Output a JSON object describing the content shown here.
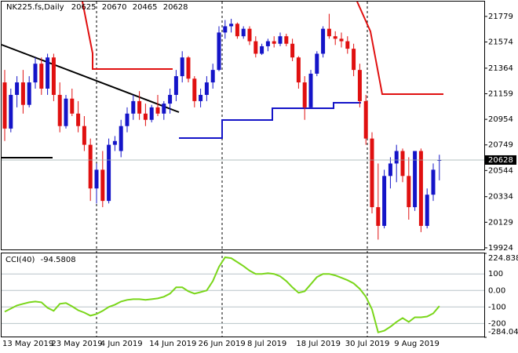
{
  "chart_data": [
    {
      "type": "candlestick",
      "title": "NK225.fs,Daily",
      "categories": [
        "13 May 2019",
        null,
        null,
        null,
        null,
        null,
        null,
        null,
        "23 May 2019",
        null,
        null,
        null,
        null,
        null,
        null,
        null,
        "4 Jun 2019",
        null,
        null,
        null,
        null,
        null,
        null,
        null,
        "14 Jun 2019",
        null,
        null,
        null,
        null,
        null,
        null,
        null,
        "26 Jun 2019",
        null,
        null,
        null,
        null,
        null,
        null,
        null,
        "8 Jul 2019",
        null,
        null,
        null,
        null,
        null,
        null,
        null,
        "18 Jul 2019",
        null,
        null,
        null,
        null,
        null,
        null,
        null,
        "30 Jul 2019",
        null,
        null,
        null,
        null,
        null,
        null,
        null,
        "9 Aug 2019",
        null,
        null,
        null,
        null,
        null,
        null,
        null
      ],
      "open": [
        21250,
        20880,
        21150,
        21250,
        21070,
        21250,
        21400,
        21200,
        21450,
        21150,
        20900,
        21120,
        21000,
        20900,
        20750,
        20400,
        20550,
        20300,
        20750,
        20700,
        20900,
        21000,
        21100,
        21000,
        20950,
        21050,
        21000,
        21080,
        21150,
        21300,
        21450,
        21280,
        21100,
        21150,
        21250,
        21350,
        21650,
        21700,
        21720,
        21620,
        21680,
        21580,
        21480,
        21540,
        21580,
        21560,
        21620,
        21560,
        21450,
        21250,
        21050,
        21320,
        21480,
        21680,
        21620,
        21600,
        21580,
        21520,
        21350,
        21100,
        20800,
        20250,
        20100,
        20500,
        20600,
        20700,
        20500,
        20250,
        20700,
        20100,
        20350,
        20625
      ],
      "high": [
        21350,
        21200,
        21300,
        21350,
        21300,
        21450,
        21450,
        21480,
        21480,
        21250,
        21150,
        21200,
        21100,
        20980,
        20800,
        20600,
        20700,
        20800,
        20820,
        20950,
        21050,
        21150,
        21180,
        21080,
        21070,
        21150,
        21100,
        21200,
        21350,
        21500,
        21460,
        21300,
        21200,
        21300,
        21400,
        21700,
        21750,
        21760,
        21730,
        21700,
        21700,
        21620,
        21560,
        21600,
        21620,
        21650,
        21640,
        21600,
        21460,
        21300,
        21350,
        21500,
        21700,
        21800,
        21660,
        21650,
        21620,
        21560,
        21400,
        21150,
        20850,
        20600,
        20550,
        20650,
        20750,
        20720,
        20650,
        20700,
        20720,
        20400,
        20600,
        20670
      ],
      "low": [
        20780,
        20850,
        21050,
        21000,
        21050,
        21200,
        21150,
        21150,
        21100,
        20850,
        20880,
        20980,
        20850,
        20700,
        20300,
        20280,
        20250,
        20280,
        20700,
        20650,
        20850,
        20950,
        20950,
        20900,
        20930,
        20980,
        20950,
        21000,
        21100,
        21250,
        21250,
        21050,
        21050,
        21100,
        21200,
        21340,
        21600,
        21650,
        21600,
        21600,
        21550,
        21450,
        21470,
        21500,
        21530,
        21540,
        21540,
        21420,
        21200,
        20950,
        21040,
        21300,
        21450,
        21600,
        21550,
        21530,
        21480,
        21300,
        21050,
        20750,
        20200,
        19990,
        20080,
        20400,
        20450,
        20450,
        20150,
        20220,
        20050,
        20080,
        20300,
        20465
      ],
      "close": [
        20880,
        21150,
        21250,
        21070,
        21250,
        21400,
        21200,
        21450,
        21150,
        20900,
        21120,
        21000,
        20900,
        20750,
        20400,
        20550,
        20300,
        20750,
        20780,
        20900,
        21000,
        21100,
        21000,
        20950,
        21050,
        21000,
        21080,
        21150,
        21300,
        21450,
        21280,
        21100,
        21150,
        21250,
        21350,
        21650,
        21700,
        21720,
        21620,
        21680,
        21580,
        21480,
        21540,
        21580,
        21560,
        21620,
        21560,
        21450,
        21250,
        21050,
        21320,
        21480,
        21680,
        21620,
        21600,
        21580,
        21520,
        21350,
        21100,
        20800,
        20250,
        20100,
        20500,
        20600,
        20700,
        20500,
        20250,
        20700,
        20100,
        20350,
        20550,
        20628
      ],
      "up_color": "#1414c8",
      "down_color": "#e01010",
      "ylim": [
        19911,
        21898
      ],
      "yticks": [
        21779,
        21574,
        21364,
        21159,
        20954,
        20749,
        20544,
        20334,
        20129,
        19924
      ]
    },
    {
      "type": "line",
      "title": "CCI(40)",
      "color": "#7ad61a",
      "values": [
        -129,
        -110,
        -91,
        -81,
        -72,
        -67,
        -72,
        -105,
        -124,
        -81,
        -76,
        -96,
        -120,
        -134,
        -153,
        -143,
        -124,
        -100,
        -86,
        -67,
        -57,
        -53,
        -53,
        -57,
        -53,
        -48,
        -38,
        -19,
        19,
        19,
        -5,
        -19,
        -10,
        0,
        57,
        143,
        201,
        196,
        172,
        148,
        120,
        100,
        100,
        105,
        100,
        86,
        57,
        19,
        -14,
        -5,
        38,
        81,
        100,
        100,
        91,
        77,
        62,
        43,
        10,
        -38,
        -115,
        -254,
        -244,
        -220,
        -191,
        -167,
        -191,
        -163,
        -163,
        -158,
        -139,
        -94.5808
      ],
      "ylim": [
        -284.044,
        224.8386
      ],
      "yticks": [
        {
          "value": 224.8386,
          "label": "224.8386"
        },
        100,
        {
          "value": 0,
          "label": "0.00"
        },
        -100,
        -200,
        {
          "value": -284.044,
          "label": "-284.044"
        }
      ]
    }
  ]
}
